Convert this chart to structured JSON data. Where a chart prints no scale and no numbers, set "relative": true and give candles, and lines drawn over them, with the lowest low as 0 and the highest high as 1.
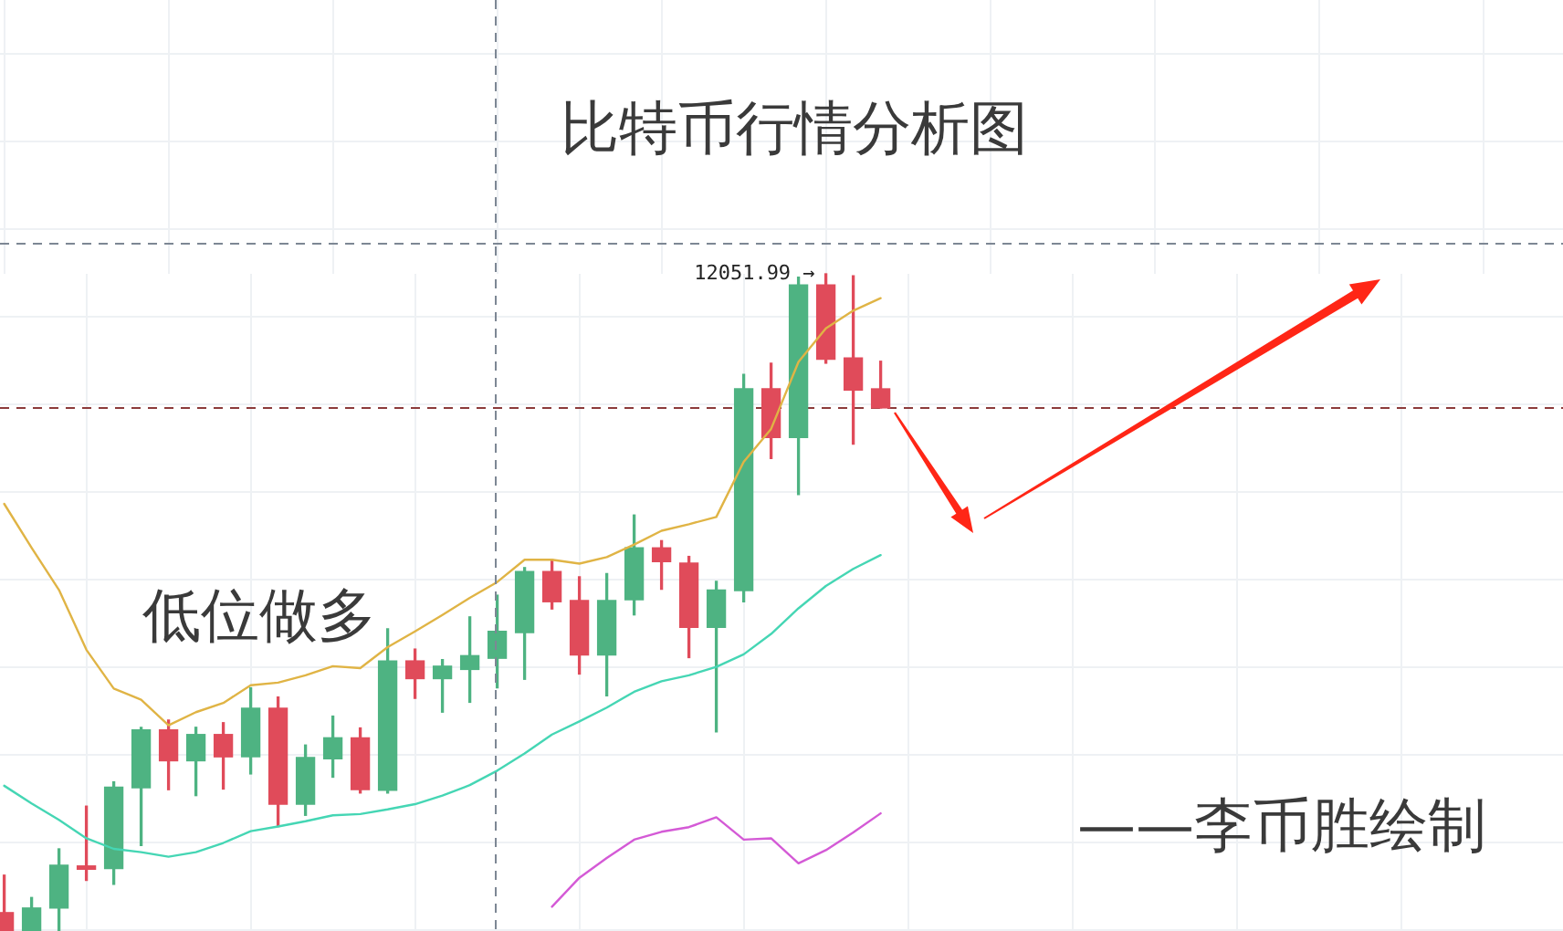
{
  "chart_data": {
    "type": "candlestick",
    "title": "比特币行情分析图",
    "relative": true,
    "grid": true,
    "marker": "none",
    "categories": [
      null,
      null,
      null,
      null,
      null,
      null,
      null,
      null,
      null,
      null,
      null,
      null,
      null,
      null,
      null,
      null,
      null,
      null,
      null,
      null,
      null,
      null,
      null,
      null,
      null,
      null,
      null,
      null,
      null,
      null,
      null,
      null,
      null
    ],
    "ohlc": [
      [
        0.028,
        0.085,
        0,
        0
      ],
      [
        0,
        0.051,
        0,
        0.035
      ],
      [
        0.035,
        0.125,
        0,
        0.1
      ],
      [
        0.099,
        0.19,
        0.077,
        0.094
      ],
      [
        0.095,
        0.227,
        0.071,
        0.219
      ],
      [
        0.218,
        0.31,
        0.13,
        0.306
      ],
      [
        0.306,
        0.321,
        0.215,
        0.259
      ],
      [
        0.259,
        0.31,
        0.206,
        0.299
      ],
      [
        0.299,
        0.317,
        0.216,
        0.265
      ],
      [
        0.265,
        0.37,
        0.239,
        0.339
      ],
      [
        0.339,
        0.356,
        0.159,
        0.193
      ],
      [
        0.193,
        0.283,
        0.176,
        0.264
      ],
      [
        0.262,
        0.327,
        0.234,
        0.294
      ],
      [
        0.294,
        0.309,
        0.21,
        0.215
      ],
      [
        0.214,
        0.46,
        0.21,
        0.411
      ],
      [
        0.411,
        0.429,
        0.354,
        0.384
      ],
      [
        0.384,
        0.413,
        0.333,
        0.403
      ],
      [
        0.398,
        0.478,
        0.348,
        0.419
      ],
      [
        0.415,
        0.511,
        0.37,
        0.456
      ],
      [
        0.454,
        0.553,
        0.383,
        0.547
      ],
      [
        0.547,
        0.565,
        0.49,
        0.501
      ],
      [
        0.503,
        0.539,
        0.391,
        0.42
      ],
      [
        0.42,
        0.544,
        0.358,
        0.503
      ],
      [
        0.504,
        0.633,
        0.481,
        0.583
      ],
      [
        0.583,
        0.594,
        0.52,
        0.562
      ],
      [
        0.56,
        0.57,
        0.416,
        0.462
      ],
      [
        0.462,
        0.532,
        0.303,
        0.519
      ],
      [
        0.518,
        0.847,
        0.501,
        0.825
      ],
      [
        0.825,
        0.864,
        0.719,
        0.751
      ],
      [
        0.751,
        0.995,
        0.664,
        0.983
      ],
      [
        0.983,
        1,
        0.864,
        0.87
      ],
      [
        0.872,
        0.997,
        0.741,
        0.823
      ],
      [
        0.825,
        0.867,
        0.796,
        0.796
      ]
    ],
    "colors": [
      "#e04b5a",
      "#4eb382",
      "#4eb382",
      "#e04b5a",
      "#4eb382",
      "#4eb382",
      "#e04b5a",
      "#4eb382",
      "#e04b5a",
      "#4eb382",
      "#e04b5a",
      "#4eb382",
      "#4eb382",
      "#e04b5a",
      "#4eb382",
      "#e04b5a",
      "#4eb382",
      "#4eb382",
      "#4eb382",
      "#4eb382",
      "#e04b5a",
      "#e04b5a",
      "#4eb382",
      "#4eb382",
      "#e04b5a",
      "#e04b5a",
      "#4eb382",
      "#4eb382",
      "#e04b5a",
      "#4eb382",
      "#e04b5a",
      "#e04b5a",
      "#e04b5a"
    ],
    "series": [
      {
        "type": "line",
        "color": "#e0b445",
        "values": [
          0.65,
          0.583,
          0.519,
          0.428,
          0.369,
          0.352,
          0.313,
          0.333,
          0.347,
          0.374,
          0.378,
          0.389,
          0.403,
          0.4,
          0.432,
          0.456,
          0.481,
          0.507,
          0.531,
          0.565,
          0.565,
          0.559,
          0.569,
          0.588,
          0.609,
          0.619,
          0.63,
          0.714,
          0.764,
          0.866,
          0.917,
          0.944,
          0.963
        ]
      },
      {
        "type": "line",
        "color": "#45d6b4",
        "values": [
          0.221,
          0.194,
          0.169,
          0.141,
          0.125,
          0.12,
          0.113,
          0.12,
          0.134,
          0.152,
          0.159,
          0.167,
          0.176,
          0.178,
          0.185,
          0.193,
          0.206,
          0.222,
          0.244,
          0.27,
          0.299,
          0.319,
          0.34,
          0.364,
          0.38,
          0.389,
          0.402,
          0.421,
          0.452,
          0.491,
          0.525,
          0.551,
          0.572
        ]
      },
      {
        "type": "line",
        "color": "#d45ad6",
        "values": [
          null,
          null,
          null,
          null,
          null,
          null,
          null,
          null,
          null,
          null,
          null,
          null,
          null,
          null,
          null,
          null,
          null,
          null,
          null,
          null,
          0.037,
          0.081,
          0.111,
          0.139,
          0.151,
          0.158,
          0.173,
          0.139,
          0.141,
          0.103,
          0.123,
          0.15,
          0.179
        ]
      }
    ],
    "ref_lines": [
      {
        "axis": "y",
        "value": 1.047,
        "color": "#7d8794",
        "line_style": "dashed"
      },
      {
        "axis": "y",
        "value": 0.796,
        "color": "#8c3b3b",
        "line_style": "dashed"
      }
    ],
    "annotations": [
      "低位做多",
      "12051.99 →",
      "——李币胜绘制"
    ]
  }
}
